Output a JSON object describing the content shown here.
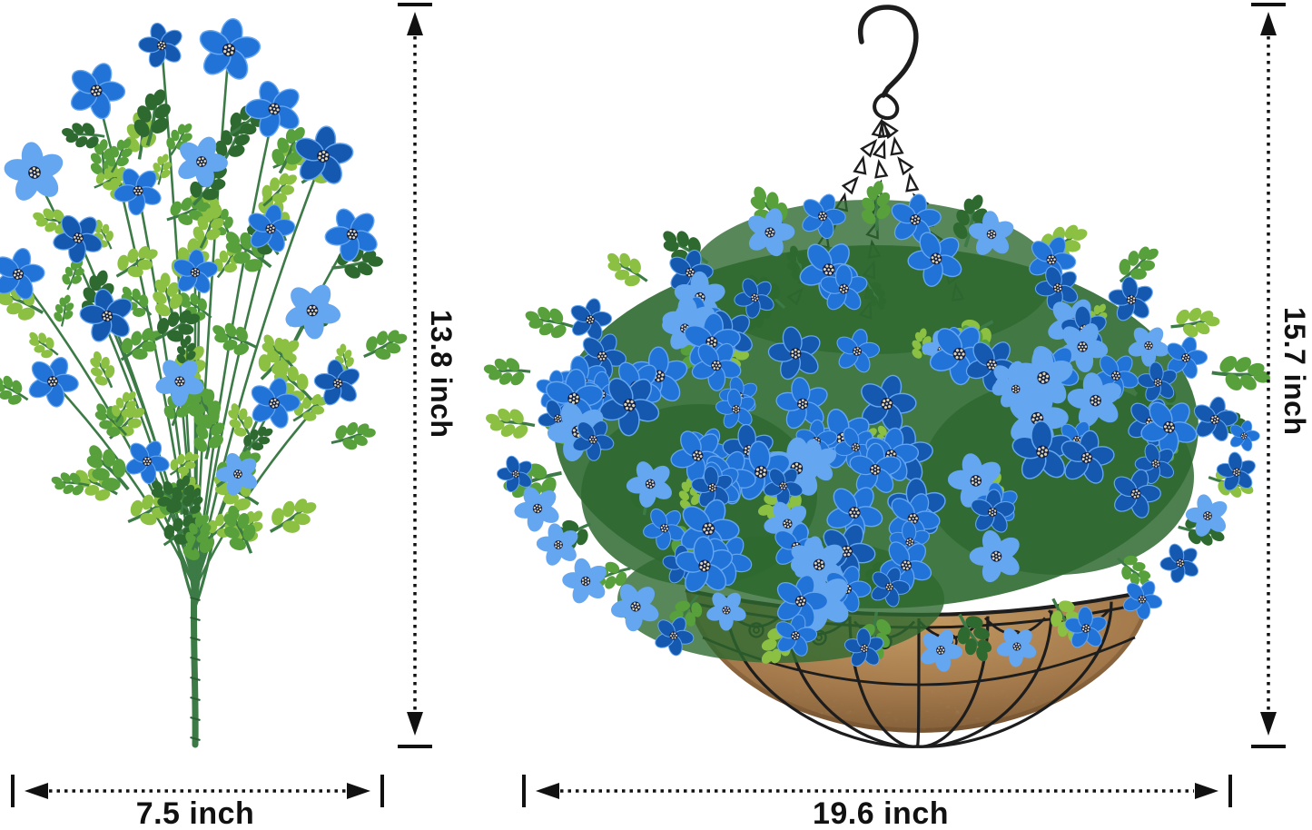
{
  "dimensions": {
    "bush_height": "13.8 inch",
    "bush_width": "7.5 inch",
    "basket_height": "15.7 inch",
    "basket_width": "19.6 inch"
  },
  "colors": {
    "background": "#ffffff",
    "dimension": "#111111",
    "flower_blue": "#2273d8",
    "flower_blue_dark": "#1558b0",
    "flower_blue_light": "#64a6ef",
    "flower_center": "#131f45",
    "stamen": "#ddd6b4",
    "leaf_light": "#8cc043",
    "leaf_mid": "#57a03b",
    "leaf_dark": "#2e6930",
    "stem": "#3c7a46",
    "coco_light": "#c49a63",
    "coco_mid": "#a47a4c",
    "coco_dark": "#7a5733",
    "wire": "#1d1d1d"
  }
}
